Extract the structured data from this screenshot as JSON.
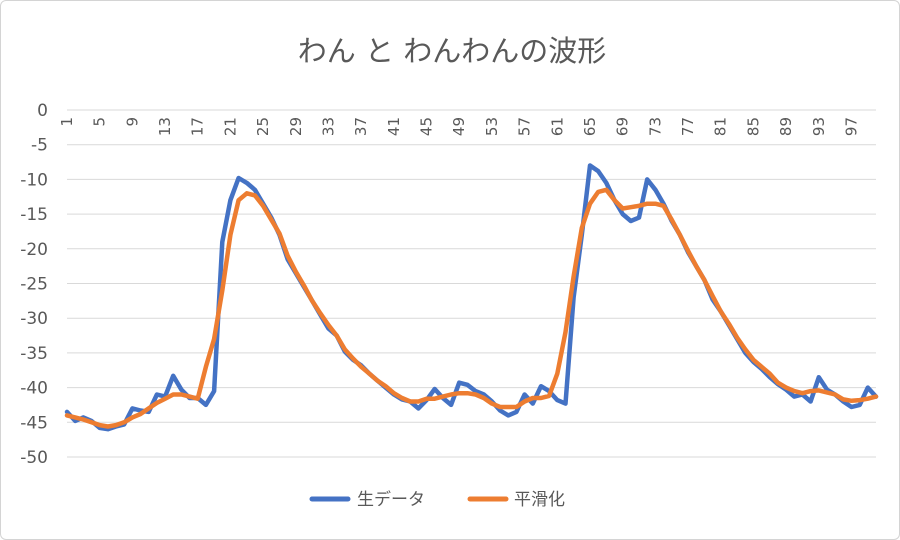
{
  "chart_data": {
    "type": "line",
    "title": "わん と わんわんの波形",
    "xlabel": "",
    "ylabel": "",
    "ylim": [
      -50,
      0
    ],
    "yticks": [
      0,
      -5,
      -10,
      -15,
      -20,
      -25,
      -30,
      -35,
      -40,
      -45,
      -50
    ],
    "grid": true,
    "legend": "bottom",
    "x": [
      1,
      2,
      3,
      4,
      5,
      6,
      7,
      8,
      9,
      10,
      11,
      12,
      13,
      14,
      15,
      16,
      17,
      18,
      19,
      20,
      21,
      22,
      23,
      24,
      25,
      26,
      27,
      28,
      29,
      30,
      31,
      32,
      33,
      34,
      35,
      36,
      37,
      38,
      39,
      40,
      41,
      42,
      43,
      44,
      45,
      46,
      47,
      48,
      49,
      50,
      51,
      52,
      53,
      54,
      55,
      56,
      57,
      58,
      59,
      60,
      61,
      62,
      63,
      64,
      65,
      66,
      67,
      68,
      69,
      70,
      71,
      72,
      73,
      74,
      75,
      76,
      77,
      78,
      79,
      80,
      81,
      82,
      83,
      84,
      85,
      86,
      87,
      88,
      89,
      90,
      91,
      92,
      93,
      94,
      95,
      96,
      97,
      98,
      99,
      100
    ],
    "xtick_labels": [
      "1",
      "5",
      "9",
      "13",
      "17",
      "21",
      "25",
      "29",
      "33",
      "37",
      "41",
      "45",
      "49",
      "53",
      "57",
      "61",
      "65",
      "69",
      "73",
      "77",
      "81",
      "85",
      "89",
      "93",
      "97"
    ],
    "series": [
      {
        "name": "生データ",
        "color": "#4472C4",
        "values": [
          -43.5,
          -44.8,
          -44.3,
          -44.8,
          -45.8,
          -46.0,
          -45.6,
          -45.3,
          -43.0,
          -43.3,
          -43.5,
          -41.0,
          -41.3,
          -38.3,
          -40.3,
          -41.5,
          -41.5,
          -42.5,
          -40.5,
          -19.0,
          -13.0,
          -9.8,
          -10.5,
          -11.5,
          -13.5,
          -15.5,
          -18.0,
          -21.5,
          -23.5,
          -25.5,
          -27.5,
          -29.5,
          -31.5,
          -32.5,
          -34.8,
          -36.0,
          -36.8,
          -38.0,
          -39.0,
          -40.0,
          -41.0,
          -41.7,
          -42.0,
          -43.0,
          -41.8,
          -40.2,
          -41.5,
          -42.5,
          -39.3,
          -39.6,
          -40.5,
          -41.0,
          -42.0,
          -43.3,
          -44.0,
          -43.5,
          -41.0,
          -42.3,
          -39.8,
          -40.5,
          -41.8,
          -42.3,
          -27.0,
          -18.0,
          -8.0,
          -8.8,
          -10.5,
          -13.0,
          -15.0,
          -16.0,
          -15.5,
          -10.0,
          -11.5,
          -13.5,
          -16.0,
          -18.0,
          -20.5,
          -22.5,
          -24.5,
          -27.3,
          -29.0,
          -31.0,
          -33.0,
          -35.0,
          -36.3,
          -37.3,
          -38.5,
          -39.5,
          -40.3,
          -41.3,
          -41.0,
          -42.0,
          -38.5,
          -40.3,
          -41.0,
          -42.0,
          -42.8,
          -42.5,
          -40.0,
          -41.3
        ]
      },
      {
        "name": "平滑化",
        "color": "#ED7D31",
        "values": [
          -44.0,
          -44.3,
          -44.6,
          -45.0,
          -45.4,
          -45.6,
          -45.4,
          -45.0,
          -44.3,
          -43.8,
          -43.0,
          -42.2,
          -41.6,
          -41.0,
          -41.0,
          -41.3,
          -41.6,
          -37.0,
          -33.0,
          -26.0,
          -18.0,
          -13.0,
          -12.0,
          -12.3,
          -13.8,
          -15.8,
          -17.8,
          -21.0,
          -23.3,
          -25.3,
          -27.5,
          -29.3,
          -31.0,
          -32.5,
          -34.5,
          -35.8,
          -37.0,
          -38.0,
          -39.0,
          -39.8,
          -40.8,
          -41.5,
          -42.0,
          -42.0,
          -41.6,
          -41.6,
          -41.3,
          -41.0,
          -40.8,
          -40.8,
          -41.0,
          -41.5,
          -42.3,
          -42.8,
          -42.8,
          -42.8,
          -42.0,
          -41.5,
          -41.5,
          -41.2,
          -38.0,
          -32.0,
          -24.0,
          -17.0,
          -13.5,
          -11.8,
          -11.5,
          -13.0,
          -14.2,
          -14.0,
          -13.8,
          -13.5,
          -13.5,
          -13.8,
          -15.8,
          -18.0,
          -20.3,
          -22.5,
          -24.5,
          -26.8,
          -29.0,
          -30.8,
          -32.8,
          -34.5,
          -36.0,
          -37.0,
          -38.0,
          -39.3,
          -40.0,
          -40.5,
          -40.8,
          -40.5,
          -40.4,
          -40.7,
          -41.0,
          -41.7,
          -41.9,
          -41.8,
          -41.6,
          -41.3
        ]
      }
    ]
  }
}
